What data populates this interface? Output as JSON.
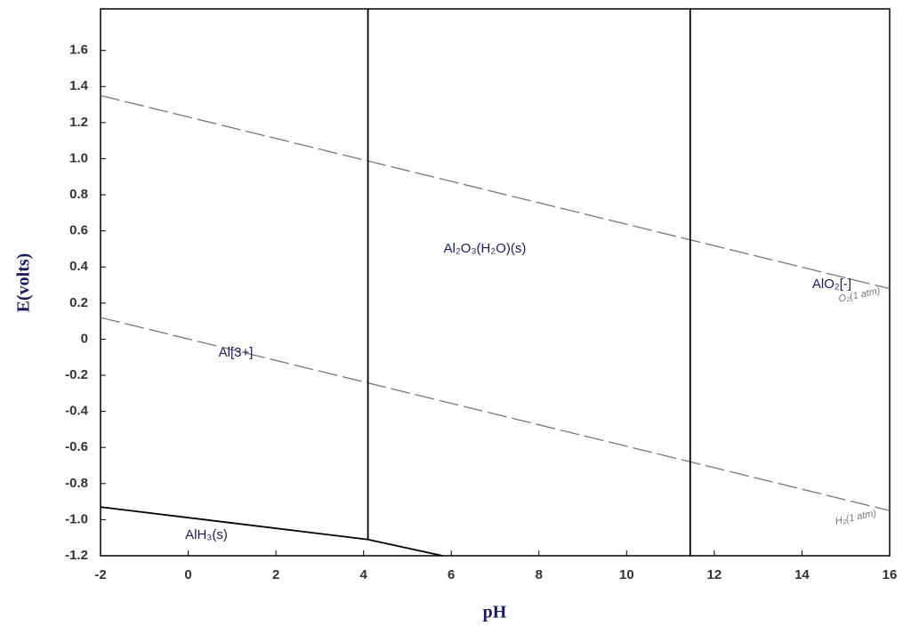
{
  "chart_data": {
    "type": "line",
    "xlabel": "pH",
    "ylabel": "E(volts)",
    "xlim": [
      -2,
      16
    ],
    "ylim": [
      -1.2,
      1.83
    ],
    "xticks": [
      -2,
      0,
      2,
      4,
      6,
      8,
      10,
      12,
      14,
      16
    ],
    "yticks": [
      -1.2,
      {
        "value": -1,
        "label": "-1.0"
      },
      -0.8,
      -0.6,
      -0.4,
      -0.2,
      0,
      0.2,
      0.4,
      0.6,
      0.8,
      {
        "value": 1,
        "label": "1.0"
      },
      1.2,
      1.4,
      1.6
    ],
    "series": [
      {
        "name": "O₂(1 atm)",
        "color": "#777777",
        "dashed": true,
        "x": [
          -2,
          16
        ],
        "values": [
          1.35,
          0.28
        ]
      },
      {
        "name": "H₂(1 atm)",
        "color": "#777777",
        "dashed": true,
        "x": [
          -2,
          16
        ],
        "values": [
          0.12,
          -0.95
        ]
      },
      {
        "color": "#000000",
        "dashed": false,
        "x": [
          4.1,
          4.1
        ],
        "values": [
          -1.11,
          1.83
        ]
      },
      {
        "color": "#000000",
        "dashed": false,
        "x": [
          11.45,
          11.45
        ],
        "values": [
          -1.2,
          1.83
        ]
      },
      {
        "color": "#000000",
        "dashed": false,
        "x": [
          -2,
          4.1,
          5.8
        ],
        "values": [
          -0.93,
          -1.11,
          -1.2
        ]
      }
    ],
    "annotations": [
      "Al₂O₃(H₂O)(s)",
      "Al[3+]",
      "AlO₂[-]",
      "AlH₃(s)"
    ]
  }
}
